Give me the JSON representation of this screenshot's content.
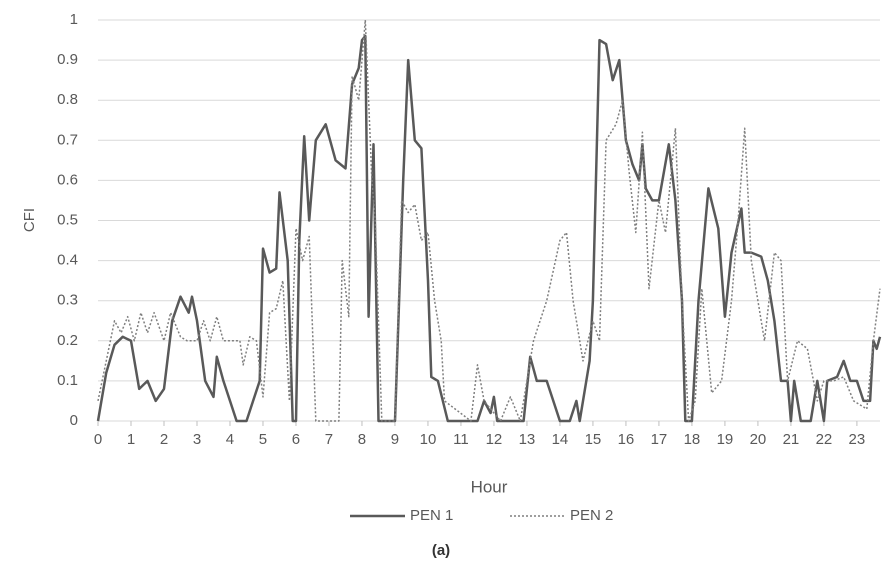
{
  "chart_data": {
    "type": "line",
    "caption": "(a)",
    "x_label": "Hour",
    "y_label": "CFI",
    "xlim": [
      0,
      23.7
    ],
    "xticks": [
      0,
      1,
      2,
      3,
      4,
      5,
      6,
      7,
      8,
      9,
      10,
      11,
      12,
      13,
      14,
      15,
      16,
      17,
      18,
      19,
      20,
      21,
      22,
      23
    ],
    "ylim": [
      0,
      1
    ],
    "yticks": [
      0,
      0.1,
      0.2,
      0.3,
      0.4,
      0.5,
      0.6,
      0.7,
      0.8,
      0.9,
      1
    ],
    "grid": true,
    "legend": "bottom",
    "series": [
      {
        "name": "PEN 1",
        "color": "#595959",
        "dash": "solid",
        "x": [
          0,
          0.25,
          0.5,
          0.75,
          1,
          1.25,
          1.5,
          1.75,
          2,
          2.25,
          2.5,
          2.75,
          2.85,
          3,
          3.25,
          3.5,
          3.6,
          3.8,
          4,
          4.2,
          4.5,
          4.7,
          4.9,
          5,
          5.2,
          5.4,
          5.5,
          5.75,
          5.9,
          6,
          6.1,
          6.25,
          6.4,
          6.6,
          6.9,
          7.2,
          7.5,
          7.7,
          7.9,
          8,
          8.1,
          8.2,
          8.35,
          8.5,
          9,
          9.25,
          9.4,
          9.6,
          9.8,
          10,
          10.1,
          10.3,
          10.6,
          11.5,
          11.7,
          11.9,
          12,
          12.1,
          12.9,
          13.1,
          13.3,
          13.6,
          13.8,
          14,
          14.3,
          14.5,
          14.6,
          14.9,
          15,
          15.2,
          15.4,
          15.6,
          15.8,
          16,
          16.2,
          16.4,
          16.5,
          16.6,
          16.8,
          17,
          17.3,
          17.5,
          17.7,
          17.8,
          18,
          18.2,
          18.5,
          18.8,
          19,
          19.2,
          19.5,
          19.6,
          19.8,
          20.1,
          20.3,
          20.5,
          20.7,
          20.9,
          21,
          21.1,
          21.3,
          21.6,
          21.8,
          22,
          22.1,
          22.4,
          22.6,
          22.8,
          23,
          23.2,
          23.4,
          23.5,
          23.6,
          23.7
        ],
        "values": [
          0,
          0.12,
          0.19,
          0.21,
          0.2,
          0.08,
          0.1,
          0.05,
          0.08,
          0.25,
          0.31,
          0.27,
          0.31,
          0.25,
          0.1,
          0.06,
          0.16,
          0.1,
          0.05,
          0,
          0,
          0.05,
          0.1,
          0.43,
          0.37,
          0.38,
          0.57,
          0.4,
          0,
          0,
          0.45,
          0.71,
          0.5,
          0.7,
          0.74,
          0.65,
          0.63,
          0.84,
          0.88,
          0.95,
          0.96,
          0.26,
          0.69,
          0,
          0,
          0.6,
          0.9,
          0.7,
          0.68,
          0.35,
          0.11,
          0.1,
          0,
          0,
          0.05,
          0.02,
          0.06,
          0,
          0,
          0.16,
          0.1,
          0.1,
          0.05,
          0,
          0,
          0.05,
          0,
          0.15,
          0.3,
          0.95,
          0.94,
          0.85,
          0.9,
          0.7,
          0.64,
          0.6,
          0.69,
          0.58,
          0.55,
          0.55,
          0.69,
          0.55,
          0.3,
          0,
          0,
          0.3,
          0.58,
          0.48,
          0.26,
          0.42,
          0.53,
          0.42,
          0.42,
          0.41,
          0.35,
          0.25,
          0.1,
          0.1,
          0,
          0.1,
          0,
          0,
          0.1,
          0,
          0.1,
          0.11,
          0.15,
          0.1,
          0.1,
          0.05,
          0.05,
          0.2,
          0.18,
          0.21
        ]
      },
      {
        "name": "PEN 2",
        "color": "#7f7f7f",
        "dash": "dotted",
        "x": [
          0,
          0.2,
          0.5,
          0.7,
          0.9,
          1.1,
          1.3,
          1.5,
          1.7,
          2,
          2.2,
          2.5,
          2.7,
          3,
          3.2,
          3.4,
          3.6,
          3.8,
          4.1,
          4.3,
          4.4,
          4.6,
          4.8,
          5,
          5.2,
          5.4,
          5.6,
          5.8,
          6,
          6.2,
          6.4,
          6.6,
          7,
          7.3,
          7.4,
          7.6,
          7.7,
          7.9,
          8.1,
          8.3,
          8.4,
          8.6,
          9,
          9.2,
          9.4,
          9.6,
          9.8,
          10,
          10.2,
          10.4,
          10.5,
          11.3,
          11.5,
          11.7,
          12,
          12.2,
          12.5,
          12.8,
          13.2,
          13.6,
          14,
          14.2,
          14.4,
          14.7,
          15,
          15.2,
          15.4,
          15.7,
          15.9,
          16.1,
          16.3,
          16.5,
          16.7,
          17,
          17.2,
          17.5,
          17.7,
          17.9,
          18.1,
          18.3,
          18.6,
          18.9,
          19.2,
          19.4,
          19.6,
          19.8,
          20,
          20.2,
          20.5,
          20.7,
          20.9,
          21.2,
          21.5,
          21.8,
          22,
          22.3,
          22.6,
          22.9,
          23.3,
          23.5,
          23.7
        ],
        "values": [
          0.05,
          0.13,
          0.25,
          0.22,
          0.26,
          0.2,
          0.27,
          0.22,
          0.27,
          0.2,
          0.27,
          0.21,
          0.2,
          0.2,
          0.25,
          0.2,
          0.26,
          0.2,
          0.2,
          0.2,
          0.14,
          0.21,
          0.2,
          0.06,
          0.27,
          0.28,
          0.35,
          0.05,
          0.48,
          0.4,
          0.46,
          0,
          0,
          0,
          0.4,
          0.26,
          0.86,
          0.8,
          1,
          0.6,
          0.5,
          0,
          0,
          0.55,
          0.52,
          0.54,
          0.45,
          0.47,
          0.3,
          0.2,
          0.05,
          0,
          0.14,
          0.05,
          0.02,
          0,
          0.06,
          0,
          0.2,
          0.3,
          0.45,
          0.47,
          0.3,
          0.15,
          0.25,
          0.2,
          0.7,
          0.74,
          0.8,
          0.62,
          0.47,
          0.72,
          0.33,
          0.55,
          0.47,
          0.73,
          0.3,
          0,
          0.05,
          0.33,
          0.07,
          0.1,
          0.3,
          0.5,
          0.73,
          0.4,
          0.3,
          0.2,
          0.42,
          0.4,
          0.1,
          0.2,
          0.18,
          0.05,
          0.1,
          0.1,
          0.11,
          0.05,
          0.03,
          0.2,
          0.33
        ]
      }
    ]
  }
}
